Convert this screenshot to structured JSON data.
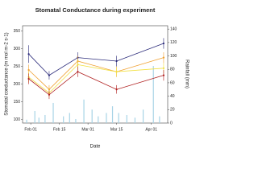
{
  "chart_data": {
    "type": "line",
    "title": "Stomatal Conductance during experiment",
    "xlabel": "Date",
    "ylabel": "Stomatal conductance (m mol m-2 s-1)",
    "y2label": "Rainfall (mm)",
    "x": [
      "Jan 31",
      "Feb 10",
      "Feb 24",
      "Mar 15",
      "Apr 07"
    ],
    "xlim": [
      "Jan 28",
      "Apr 09"
    ],
    "xticks": [
      "Feb 01",
      "Feb 15",
      "Mar 01",
      "Mar 15",
      "Apr 01"
    ],
    "ylim": [
      90,
      365
    ],
    "yticks": [
      100,
      150,
      200,
      250,
      300,
      350
    ],
    "y2lim": [
      0,
      145
    ],
    "y2ticks": [
      0,
      20,
      40,
      60,
      80,
      100,
      120,
      140
    ],
    "series": [
      {
        "color": "#2b2b7a",
        "values": [
          285,
          225,
          275,
          265,
          315
        ],
        "errors": [
          25,
          12,
          15,
          15,
          15
        ]
      },
      {
        "color": "#f0a030",
        "values": [
          240,
          185,
          265,
          235,
          275
        ],
        "errors": [
          15,
          12,
          15,
          15,
          15
        ]
      },
      {
        "color": "#f2e040",
        "values": [
          220,
          175,
          255,
          235,
          245
        ],
        "errors": [
          15,
          12,
          15,
          12,
          15
        ]
      },
      {
        "color": "#b02020",
        "values": [
          215,
          170,
          235,
          185,
          225
        ],
        "errors": [
          15,
          12,
          15,
          12,
          15
        ]
      }
    ],
    "rain": {
      "axis": "y2",
      "color": "#a8d4e6",
      "x": [
        "Jan 30",
        "Feb 03",
        "Feb 05",
        "Feb 08",
        "Feb 12",
        "Feb 17",
        "Feb 20",
        "Feb 23",
        "Feb 27",
        "Mar 03",
        "Mar 06",
        "Mar 10",
        "Mar 13",
        "Mar 16",
        "Mar 20",
        "Mar 24",
        "Mar 28",
        "Apr 02",
        "Apr 05"
      ],
      "values": [
        5,
        18,
        8,
        12,
        30,
        10,
        15,
        6,
        35,
        20,
        10,
        15,
        25,
        15,
        12,
        8,
        20,
        85,
        10
      ]
    }
  }
}
